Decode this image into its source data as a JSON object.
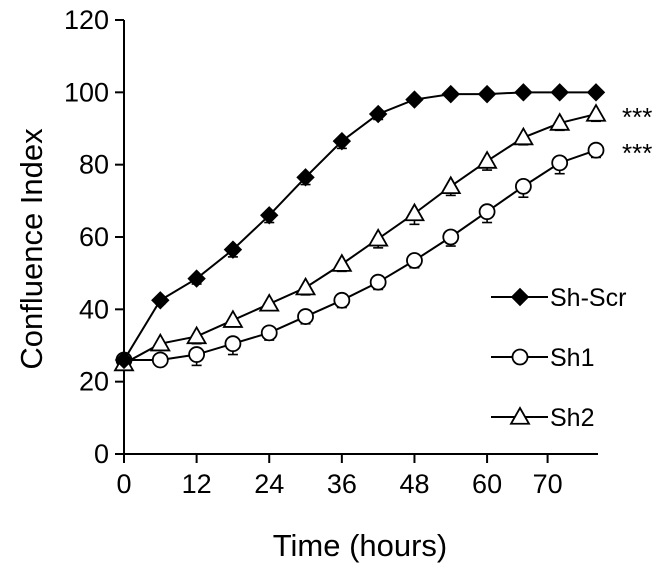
{
  "chart_data": {
    "type": "line",
    "title": "",
    "xlabel": "Time (hours)",
    "ylabel": "Confluence Index",
    "xlim": [
      0,
      78
    ],
    "ylim": [
      0,
      120
    ],
    "x_ticks": [
      0,
      12,
      24,
      36,
      48,
      60,
      70
    ],
    "y_ticks": [
      0,
      20,
      40,
      60,
      80,
      100,
      120
    ],
    "grid": false,
    "legend_position": "right",
    "series": [
      {
        "name": "Sh-Scr",
        "marker": "diamond-filled",
        "x": [
          0,
          6,
          12,
          18,
          24,
          30,
          36,
          42,
          48,
          54,
          60,
          66,
          72,
          78
        ],
        "values": [
          26,
          42.5,
          48.5,
          56.5,
          66,
          76.5,
          86.5,
          94,
          98,
          99.5,
          99.5,
          100,
          100,
          100
        ],
        "errors": [
          0,
          1,
          1.5,
          2,
          2,
          2,
          2,
          1.5,
          1,
          0.8,
          0.8,
          0.6,
          0.6,
          0.6
        ]
      },
      {
        "name": "Sh1",
        "marker": "circle-open",
        "x": [
          0,
          6,
          12,
          18,
          24,
          30,
          36,
          42,
          48,
          54,
          60,
          66,
          72,
          78
        ],
        "values": [
          26,
          26,
          27.5,
          30.5,
          33.5,
          38,
          42.5,
          47.5,
          53.5,
          60,
          67,
          74,
          80.5,
          84
        ],
        "errors": [
          0,
          1,
          3,
          3,
          2,
          2,
          2,
          2,
          2,
          2.5,
          3,
          3,
          3,
          2
        ]
      },
      {
        "name": "Sh2",
        "marker": "triangle-open",
        "x": [
          0,
          6,
          12,
          18,
          24,
          30,
          36,
          42,
          48,
          54,
          60,
          66,
          72,
          78
        ],
        "values": [
          25,
          30.5,
          32.5,
          37,
          41.5,
          46,
          52.5,
          59.5,
          66.5,
          74,
          81,
          87.5,
          91.5,
          94
        ],
        "errors": [
          0,
          1,
          2,
          1.5,
          1.5,
          2,
          2,
          2.5,
          3,
          2.5,
          2.5,
          2,
          2,
          2
        ]
      }
    ],
    "annotations": [
      {
        "text": "***",
        "series": "Sh2",
        "at_value": 94
      },
      {
        "text": "***",
        "series": "Sh1",
        "at_value": 84
      }
    ]
  }
}
